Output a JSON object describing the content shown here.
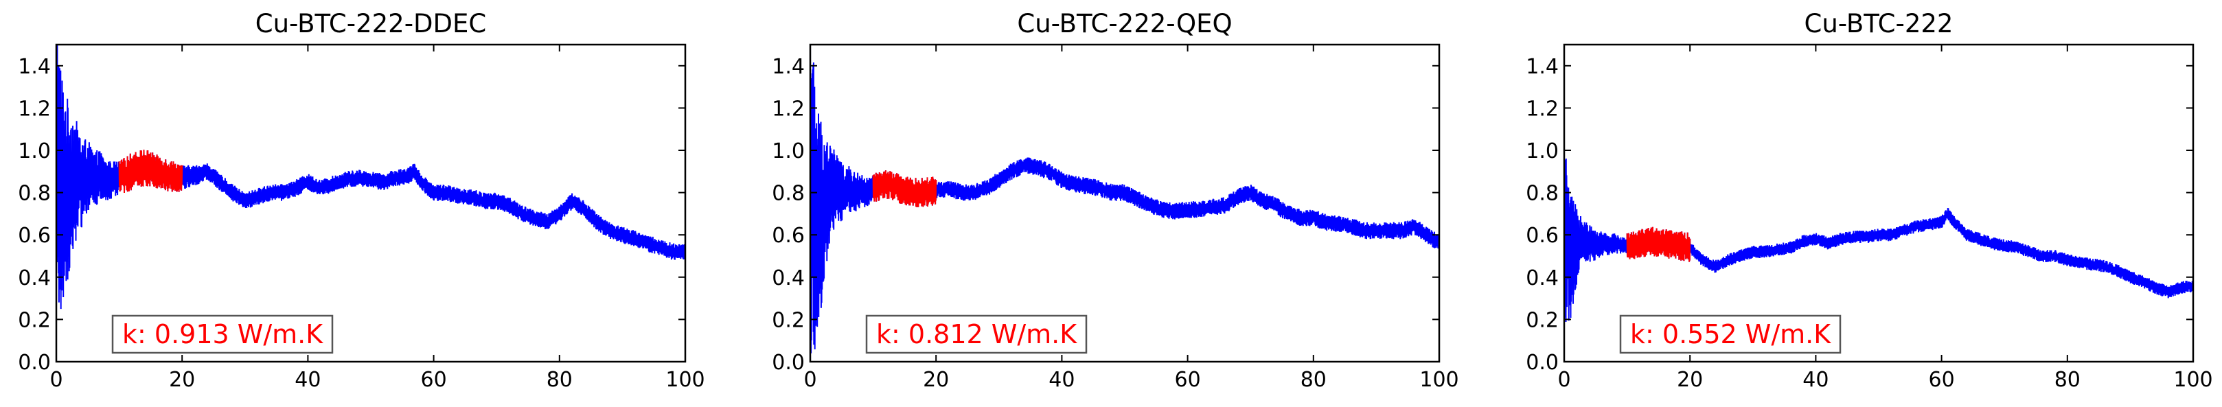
{
  "chart_data": [
    {
      "type": "line",
      "title": "Cu-BTC-222-DDEC",
      "xlim": [
        0,
        100
      ],
      "ylim": [
        0,
        1.5
      ],
      "xticks": [
        0,
        20,
        40,
        60,
        80,
        100
      ],
      "yticks": [
        0.0,
        0.2,
        0.4,
        0.6,
        0.8,
        1.0,
        1.2,
        1.4
      ],
      "xtick_labels": [
        "0",
        "20",
        "40",
        "60",
        "80",
        "100"
      ],
      "ytick_labels": [
        "0.0",
        "0.2",
        "0.4",
        "0.6",
        "0.8",
        "1.0",
        "1.2",
        "1.4"
      ],
      "grid": false,
      "annotation": "k: 0.913 W/m.K",
      "annotation_color": "#ff0000",
      "highlight_range": [
        10,
        20
      ],
      "series": [
        {
          "color": "#0000ff",
          "x": [
            0,
            1,
            2,
            3,
            4,
            5,
            6,
            7,
            8,
            9,
            10,
            12,
            14,
            16,
            18,
            20,
            22,
            24,
            26,
            28,
            30,
            32,
            34,
            36,
            38,
            40,
            42,
            44,
            46,
            48,
            50,
            52,
            54,
            56,
            57,
            58,
            60,
            62,
            64,
            66,
            68,
            70,
            72,
            74,
            76,
            78,
            80,
            82,
            84,
            86,
            88,
            90,
            92,
            94,
            96,
            98,
            100
          ],
          "y": [
            0.9,
            0.8,
            0.82,
            0.86,
            0.85,
            0.88,
            0.86,
            0.88,
            0.85,
            0.86,
            0.87,
            0.9,
            0.92,
            0.9,
            0.88,
            0.87,
            0.88,
            0.9,
            0.85,
            0.8,
            0.76,
            0.78,
            0.8,
            0.8,
            0.82,
            0.85,
            0.82,
            0.84,
            0.86,
            0.87,
            0.86,
            0.85,
            0.87,
            0.88,
            0.9,
            0.85,
            0.8,
            0.8,
            0.78,
            0.78,
            0.76,
            0.76,
            0.74,
            0.7,
            0.68,
            0.66,
            0.7,
            0.76,
            0.72,
            0.66,
            0.62,
            0.6,
            0.58,
            0.56,
            0.54,
            0.52,
            0.52
          ],
          "amplitude": [
            0.75,
            0.55,
            0.4,
            0.3,
            0.22,
            0.17,
            0.14,
            0.12,
            0.1,
            0.09,
            0.08,
            0.09,
            0.09,
            0.08,
            0.08,
            0.06,
            0.05,
            0.04,
            0.04,
            0.04,
            0.04,
            0.04,
            0.04,
            0.04,
            0.04,
            0.04,
            0.04,
            0.04,
            0.04,
            0.04,
            0.04,
            0.04,
            0.04,
            0.04,
            0.04,
            0.04,
            0.04,
            0.04,
            0.04,
            0.04,
            0.04,
            0.04,
            0.04,
            0.04,
            0.04,
            0.04,
            0.04,
            0.04,
            0.04,
            0.04,
            0.04,
            0.04,
            0.04,
            0.04,
            0.04,
            0.04,
            0.04
          ]
        }
      ]
    },
    {
      "type": "line",
      "title": "Cu-BTC-222-QEQ",
      "xlim": [
        0,
        100
      ],
      "ylim": [
        0,
        1.5
      ],
      "xticks": [
        0,
        20,
        40,
        60,
        80,
        100
      ],
      "yticks": [
        0.0,
        0.2,
        0.4,
        0.6,
        0.8,
        1.0,
        1.2,
        1.4
      ],
      "xtick_labels": [
        "0",
        "20",
        "40",
        "60",
        "80",
        "100"
      ],
      "ytick_labels": [
        "0.0",
        "0.2",
        "0.4",
        "0.6",
        "0.8",
        "1.0",
        "1.2",
        "1.4"
      ],
      "grid": false,
      "annotation": "k: 0.812 W/m.K",
      "annotation_color": "#ff0000",
      "highlight_range": [
        10,
        20
      ],
      "series": [
        {
          "color": "#0000ff",
          "x": [
            0,
            1,
            2,
            3,
            4,
            5,
            6,
            7,
            8,
            9,
            10,
            12,
            14,
            16,
            18,
            20,
            22,
            24,
            26,
            28,
            30,
            32,
            34,
            36,
            38,
            40,
            42,
            44,
            46,
            48,
            50,
            52,
            54,
            56,
            58,
            60,
            62,
            64,
            66,
            68,
            70,
            72,
            74,
            76,
            78,
            80,
            82,
            84,
            86,
            88,
            90,
            92,
            94,
            96,
            98,
            100
          ],
          "y": [
            0.85,
            0.65,
            0.72,
            0.8,
            0.82,
            0.8,
            0.82,
            0.8,
            0.81,
            0.8,
            0.82,
            0.84,
            0.82,
            0.8,
            0.8,
            0.81,
            0.82,
            0.8,
            0.8,
            0.82,
            0.86,
            0.9,
            0.93,
            0.92,
            0.9,
            0.86,
            0.84,
            0.83,
            0.82,
            0.8,
            0.8,
            0.77,
            0.74,
            0.72,
            0.71,
            0.72,
            0.72,
            0.73,
            0.74,
            0.78,
            0.8,
            0.76,
            0.74,
            0.7,
            0.68,
            0.68,
            0.66,
            0.65,
            0.64,
            0.62,
            0.62,
            0.62,
            0.62,
            0.64,
            0.6,
            0.56
          ],
          "amplitude": [
            0.85,
            0.6,
            0.4,
            0.25,
            0.18,
            0.14,
            0.11,
            0.1,
            0.08,
            0.07,
            0.06,
            0.06,
            0.05,
            0.05,
            0.05,
            0.04,
            0.04,
            0.04,
            0.04,
            0.04,
            0.04,
            0.04,
            0.04,
            0.04,
            0.04,
            0.04,
            0.04,
            0.04,
            0.04,
            0.04,
            0.04,
            0.04,
            0.04,
            0.04,
            0.04,
            0.04,
            0.04,
            0.04,
            0.04,
            0.04,
            0.04,
            0.04,
            0.04,
            0.04,
            0.04,
            0.04,
            0.04,
            0.04,
            0.04,
            0.04,
            0.04,
            0.04,
            0.04,
            0.04,
            0.04,
            0.04
          ]
        }
      ]
    },
    {
      "type": "line",
      "title": "Cu-BTC-222",
      "xlim": [
        0,
        100
      ],
      "ylim": [
        0,
        1.5
      ],
      "xticks": [
        0,
        20,
        40,
        60,
        80,
        100
      ],
      "yticks": [
        0.0,
        0.2,
        0.4,
        0.6,
        0.8,
        1.0,
        1.2,
        1.4
      ],
      "xtick_labels": [
        "0",
        "20",
        "40",
        "60",
        "80",
        "100"
      ],
      "ytick_labels": [
        "0.0",
        "0.2",
        "0.4",
        "0.6",
        "0.8",
        "1.0",
        "1.2",
        "1.4"
      ],
      "grid": false,
      "annotation": "k: 0.552 W/m.K",
      "annotation_color": "#ff0000",
      "highlight_range": [
        10,
        20
      ],
      "series": [
        {
          "color": "#0000ff",
          "x": [
            0,
            1,
            2,
            3,
            4,
            5,
            6,
            7,
            8,
            9,
            10,
            12,
            14,
            16,
            18,
            20,
            22,
            24,
            26,
            28,
            30,
            32,
            34,
            36,
            38,
            40,
            42,
            44,
            46,
            48,
            50,
            52,
            54,
            56,
            58,
            60,
            61,
            62,
            64,
            66,
            68,
            70,
            72,
            74,
            76,
            78,
            80,
            82,
            84,
            86,
            88,
            90,
            92,
            94,
            96,
            98,
            100
          ],
          "y": [
            0.6,
            0.5,
            0.55,
            0.58,
            0.56,
            0.55,
            0.56,
            0.55,
            0.56,
            0.55,
            0.55,
            0.56,
            0.57,
            0.56,
            0.55,
            0.54,
            0.48,
            0.45,
            0.48,
            0.5,
            0.52,
            0.52,
            0.53,
            0.54,
            0.57,
            0.58,
            0.56,
            0.58,
            0.59,
            0.59,
            0.6,
            0.6,
            0.62,
            0.64,
            0.65,
            0.66,
            0.7,
            0.66,
            0.6,
            0.58,
            0.56,
            0.55,
            0.54,
            0.52,
            0.5,
            0.5,
            0.48,
            0.47,
            0.46,
            0.45,
            0.43,
            0.4,
            0.38,
            0.35,
            0.33,
            0.35,
            0.36
          ],
          "amplitude": [
            0.45,
            0.3,
            0.18,
            0.12,
            0.09,
            0.07,
            0.06,
            0.05,
            0.05,
            0.04,
            0.04,
            0.04,
            0.04,
            0.04,
            0.04,
            0.03,
            0.03,
            0.03,
            0.03,
            0.03,
            0.03,
            0.03,
            0.03,
            0.03,
            0.03,
            0.03,
            0.03,
            0.03,
            0.03,
            0.03,
            0.03,
            0.03,
            0.03,
            0.03,
            0.03,
            0.03,
            0.03,
            0.03,
            0.03,
            0.03,
            0.03,
            0.03,
            0.03,
            0.03,
            0.03,
            0.03,
            0.03,
            0.03,
            0.03,
            0.03,
            0.03,
            0.03,
            0.03,
            0.03,
            0.03,
            0.03,
            0.03
          ]
        }
      ]
    }
  ]
}
